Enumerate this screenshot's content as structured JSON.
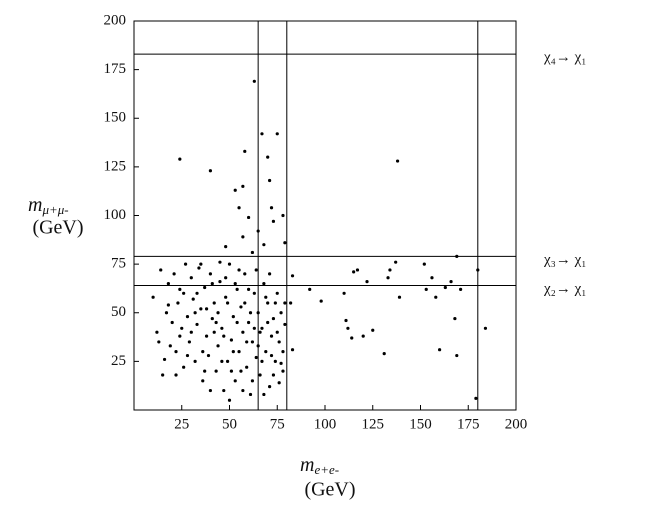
{
  "chart_data": {
    "type": "scatter",
    "x_label": {
      "symbol": "m",
      "sub": "e+e-",
      "unit": "(GeV)"
    },
    "y_label": {
      "symbol": "m",
      "sub": "μ+μ-",
      "unit": "(GeV)"
    },
    "xlim": [
      0,
      200
    ],
    "ylim": [
      0,
      200
    ],
    "xticks": [
      25,
      50,
      75,
      100,
      125,
      150,
      175,
      200
    ],
    "yticks": [
      25,
      50,
      75,
      100,
      125,
      150,
      175,
      200
    ],
    "grid": false,
    "vlines": [
      65,
      80,
      180
    ],
    "hlines": [
      {
        "value": 183,
        "label": "χ₄→ χ₁"
      },
      {
        "value": 79,
        "label": "χ₃→ χ₁"
      },
      {
        "value": 64,
        "label": "χ₂→ χ₁"
      }
    ],
    "series": [
      {
        "color": "#000000",
        "x": [
          24,
          40,
          53,
          57,
          55,
          58,
          60,
          63,
          65,
          67,
          70,
          71,
          72,
          73,
          75,
          78,
          79,
          57,
          48,
          62,
          68,
          83,
          92,
          98,
          110,
          111,
          112,
          114,
          115,
          117,
          120,
          122,
          125,
          131,
          133,
          134,
          137,
          138,
          139,
          152,
          153,
          156,
          158,
          160,
          163,
          166,
          168,
          169,
          169,
          171,
          179,
          180,
          184,
          83,
          79,
          82,
          10,
          12,
          14,
          15,
          16,
          17,
          18,
          19,
          20,
          21,
          22,
          23,
          24,
          25,
          26,
          27,
          28,
          29,
          30,
          31,
          32,
          33,
          34,
          35,
          36,
          37,
          38,
          39,
          40,
          41,
          42,
          43,
          44,
          45,
          46,
          47,
          48,
          49,
          50,
          51,
          52,
          53,
          54,
          55,
          56,
          57,
          58,
          59,
          60,
          61,
          62,
          63,
          64,
          65,
          66,
          67,
          68,
          69,
          70,
          71,
          72,
          73,
          74,
          75,
          76,
          77,
          78,
          79,
          22,
          26,
          30,
          33,
          36,
          38,
          40,
          42,
          44,
          46,
          48,
          50,
          52,
          54,
          56,
          58,
          60,
          62,
          64,
          66,
          68,
          70,
          72,
          74,
          76,
          78,
          35,
          45,
          55,
          28,
          32,
          37,
          41,
          43,
          47,
          49,
          51,
          53,
          57,
          59,
          61,
          63,
          65,
          67,
          69,
          71,
          73,
          75,
          77,
          24,
          18,
          13
        ],
        "y": [
          129,
          123,
          113,
          115,
          104,
          133,
          99,
          169,
          92,
          142,
          130,
          118,
          104,
          97,
          142,
          100,
          86,
          89,
          84,
          81,
          85,
          69,
          62,
          56,
          60,
          46,
          42,
          37,
          71,
          72,
          38,
          66,
          41,
          29,
          68,
          72,
          76,
          128,
          58,
          75,
          62,
          68,
          58,
          31,
          63,
          66,
          47,
          79,
          28,
          62,
          6,
          72,
          42,
          31,
          55,
          55,
          58,
          40,
          72,
          18,
          26,
          50,
          65,
          33,
          45,
          70,
          30,
          55,
          62,
          42,
          22,
          75,
          48,
          35,
          68,
          57,
          25,
          44,
          73,
          52,
          15,
          63,
          38,
          28,
          70,
          47,
          55,
          20,
          33,
          66,
          42,
          10,
          58,
          25,
          75,
          36,
          48,
          15,
          62,
          30,
          53,
          40,
          70,
          22,
          45,
          8,
          35,
          60,
          27,
          50,
          18,
          42,
          65,
          30,
          55,
          12,
          38,
          47,
          25,
          60,
          35,
          50,
          20,
          44,
          18,
          60,
          40,
          60,
          30,
          52,
          10,
          40,
          50,
          25,
          68,
          5,
          30,
          45,
          20,
          55,
          62,
          15,
          72,
          40,
          8,
          45,
          28,
          55,
          14,
          30,
          75,
          76,
          72,
          28,
          50,
          20,
          65,
          45,
          38,
          55,
          20,
          65,
          10,
          35,
          50,
          42,
          33,
          25,
          58,
          70,
          18,
          40,
          24,
          38,
          54,
          35
        ]
      }
    ]
  }
}
